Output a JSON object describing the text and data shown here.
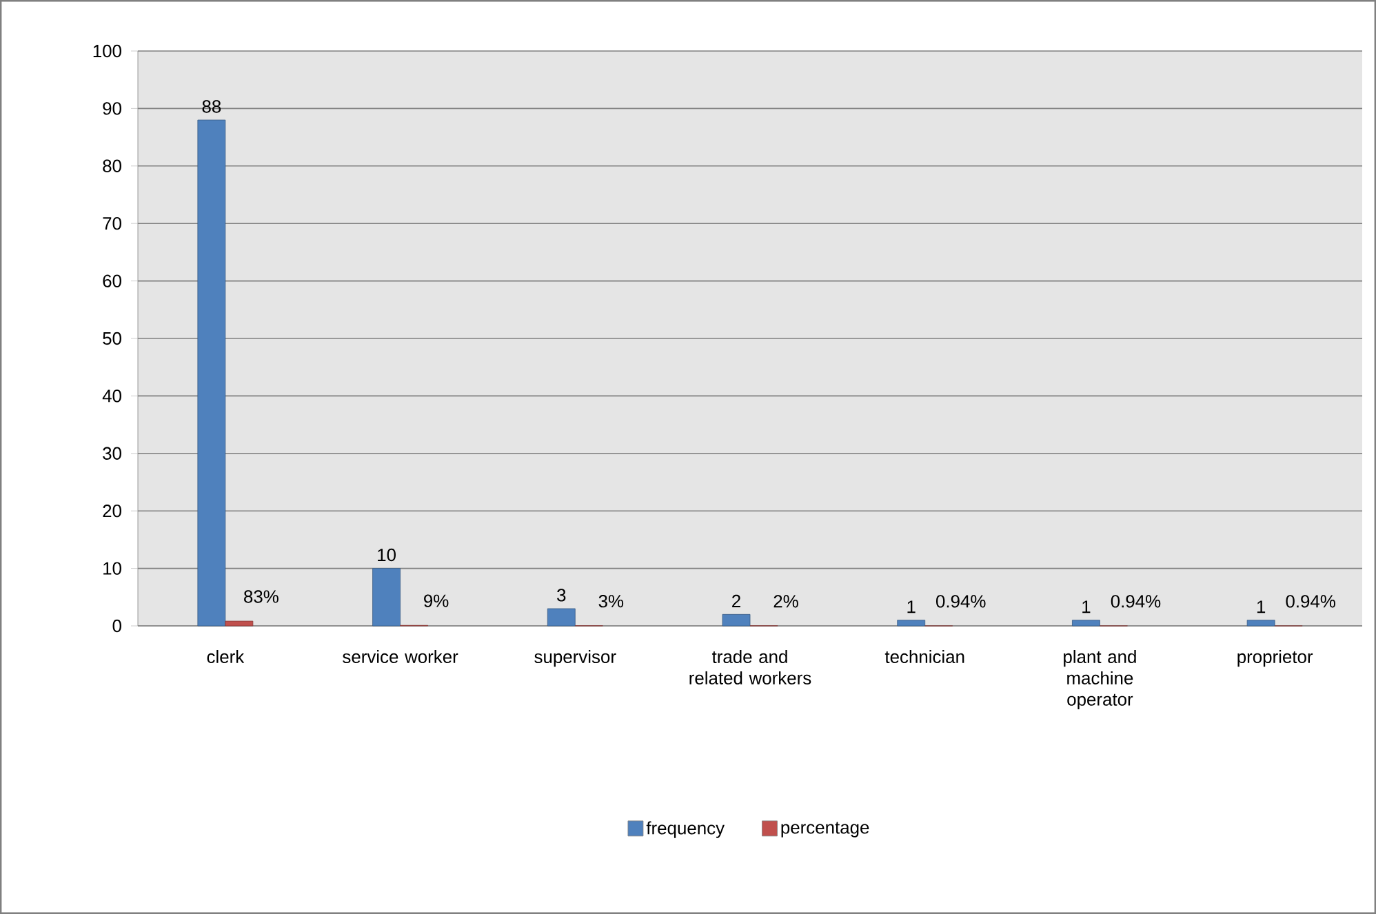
{
  "chart_data": {
    "type": "bar",
    "categories": [
      "clerk",
      "service worker",
      "supervisor",
      "trade and related workers",
      "technician",
      "plant and machine operator",
      "proprietor"
    ],
    "series": [
      {
        "name": "frequency",
        "color": "#4f81bd",
        "values": [
          88,
          10,
          3,
          2,
          1,
          1,
          1
        ],
        "value_labels": [
          "88",
          "10",
          "3",
          "2",
          "1",
          "1",
          "1"
        ]
      },
      {
        "name": "percentage",
        "color": "#c0504d",
        "values": [
          0.83,
          0.09,
          0.03,
          0.02,
          0.0094,
          0.0094,
          0.0094
        ],
        "value_labels": [
          "83%",
          "9%",
          "3%",
          "2%",
          "0.94%",
          "0.94%",
          "0.94%"
        ]
      }
    ],
    "ylim": [
      0,
      100
    ],
    "yticks": [
      0,
      10,
      20,
      30,
      40,
      50,
      60,
      70,
      80,
      90,
      100
    ],
    "grid": "y",
    "legend": "bottom"
  }
}
